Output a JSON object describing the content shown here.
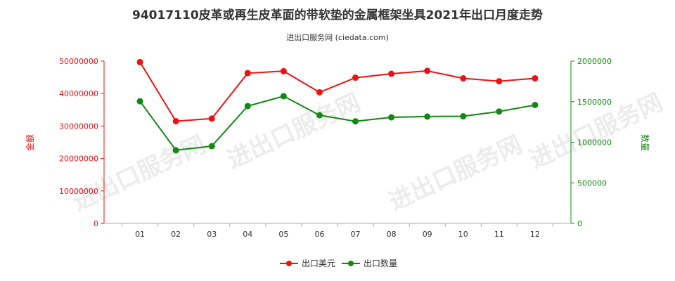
{
  "title": "94017110皮革或再生皮革面的带软垫的金属框架坐具2021年出口月度走势",
  "subtitle": "进出口服务网 (ciedata.com)",
  "watermark": "进出口服务网",
  "colors": {
    "amount": "#ee1111",
    "quantity": "#118811",
    "axis": "#aaaaaa",
    "title": "#333333"
  },
  "chart_data": {
    "type": "line",
    "categories": [
      "01",
      "02",
      "03",
      "04",
      "05",
      "06",
      "07",
      "08",
      "09",
      "10",
      "11",
      "12"
    ],
    "series": [
      {
        "name": "出口美元",
        "axis": "left",
        "values": [
          49700000,
          31500000,
          32300000,
          46300000,
          46900000,
          40400000,
          44900000,
          46100000,
          47000000,
          44700000,
          43800000,
          44700000
        ]
      },
      {
        "name": "出口数量",
        "axis": "right",
        "values": [
          1505000,
          902000,
          952000,
          1446000,
          1568000,
          1333000,
          1258000,
          1307000,
          1317000,
          1320000,
          1379000,
          1459000
        ]
      }
    ],
    "ylabel_left": "金额",
    "ylabel_right": "数量",
    "ylim_left": [
      0,
      50000000
    ],
    "ylim_right": [
      0,
      2000000
    ],
    "yticks_left": [
      "0",
      "10000000",
      "20000000",
      "30000000",
      "40000000",
      "50000000"
    ],
    "yticks_right": [
      "0",
      "500000",
      "1000000",
      "1500000",
      "2000000"
    ],
    "legend": [
      "出口美元",
      "出口数量"
    ],
    "legend_position": "bottom-center",
    "grid": false
  }
}
